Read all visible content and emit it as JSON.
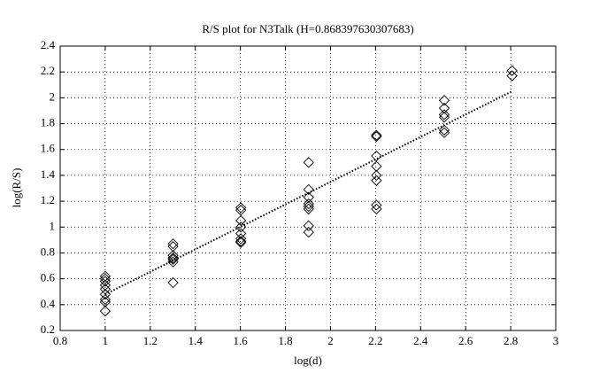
{
  "chart_data": {
    "type": "scatter",
    "title": "R/S plot for N3Talk (H=0.868397630307683)",
    "x_label": "log(d)",
    "y_label": "log(R/S)",
    "x": [
      1,
      1,
      1,
      1,
      1,
      1,
      1,
      1,
      1,
      1.301,
      1.301,
      1.301,
      1.301,
      1.301,
      1.301,
      1.301,
      1.602,
      1.602,
      1.602,
      1.602,
      1.602,
      1.602,
      1.602,
      1.602,
      1.903,
      1.903,
      1.903,
      1.903,
      1.903,
      1.903,
      1.903,
      1.903,
      2.204,
      2.204,
      2.204,
      2.204,
      2.204,
      2.204,
      2.204,
      2.204,
      2.505,
      2.505,
      2.505,
      2.505,
      2.505,
      2.505,
      2.806,
      2.806
    ],
    "values": [
      0.62,
      0.6,
      0.58,
      0.55,
      0.52,
      0.48,
      0.44,
      0.42,
      0.35,
      0.87,
      0.85,
      0.78,
      0.76,
      0.75,
      0.73,
      0.57,
      1.15,
      1.13,
      1.05,
      1.0,
      0.95,
      0.91,
      0.89,
      0.88,
      1.5,
      1.29,
      1.23,
      1.18,
      1.16,
      1.14,
      1.01,
      0.96,
      1.71,
      1.7,
      1.55,
      1.47,
      1.4,
      1.36,
      1.17,
      1.14,
      1.98,
      1.92,
      1.87,
      1.85,
      1.75,
      1.73,
      2.21,
      2.17
    ],
    "color": "#000000",
    "fit_line": {
      "x": [
        1,
        2.806
      ],
      "values": [
        0.48,
        2.05
      ]
    },
    "xlim": [
      0.8,
      3
    ],
    "xticks": [
      0.8,
      1,
      1.2,
      1.4,
      1.6,
      1.8,
      2,
      2.2,
      2.4,
      2.6,
      2.8,
      3
    ],
    "ylim": [
      0.2,
      2.4
    ],
    "yticks": [
      0.2,
      0.4,
      0.6,
      0.8,
      1,
      1.2,
      1.4,
      1.6,
      1.8,
      2,
      2.2,
      2.4
    ],
    "grid": true
  }
}
